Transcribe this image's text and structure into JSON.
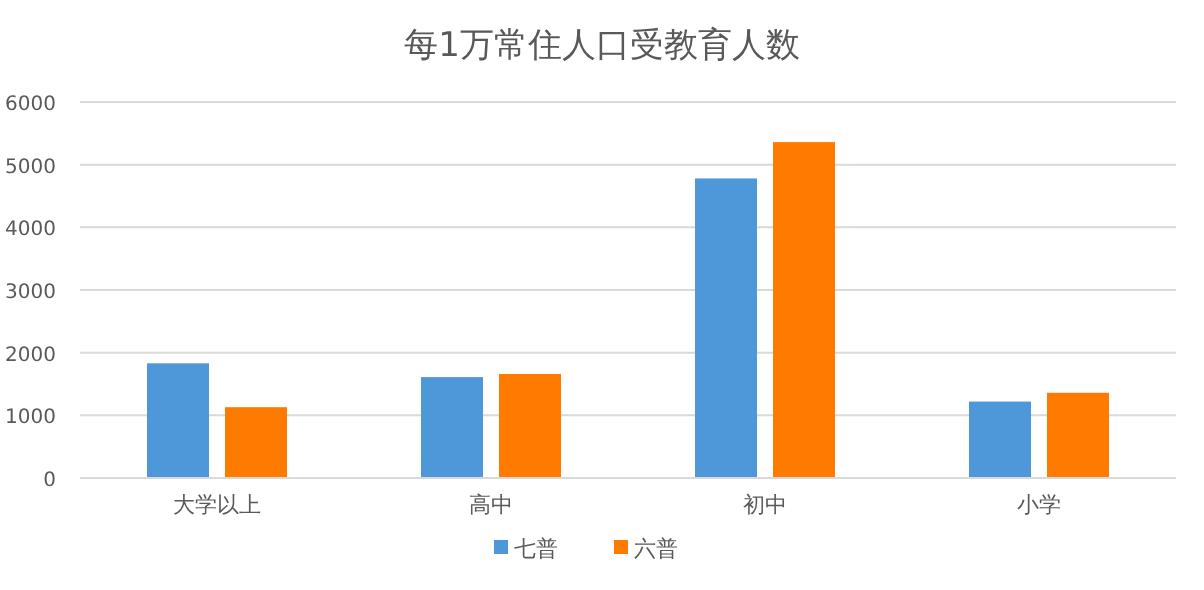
{
  "chart_data": {
    "type": "bar",
    "title": "每1万常住人口受教育人数",
    "categories": [
      "大学以上",
      "高中",
      "初中",
      "小学"
    ],
    "series": [
      {
        "name": "七普",
        "color": "#4e97d9",
        "values": [
          1830,
          1610,
          4780,
          1220
        ]
      },
      {
        "name": "六普",
        "color": "#ff7b00",
        "values": [
          1130,
          1660,
          5360,
          1360
        ]
      }
    ],
    "ylim": [
      0,
      6000
    ],
    "yticks": [
      0,
      1000,
      2000,
      3000,
      4000,
      5000,
      6000
    ],
    "grid": "y",
    "legend": "bottom"
  }
}
